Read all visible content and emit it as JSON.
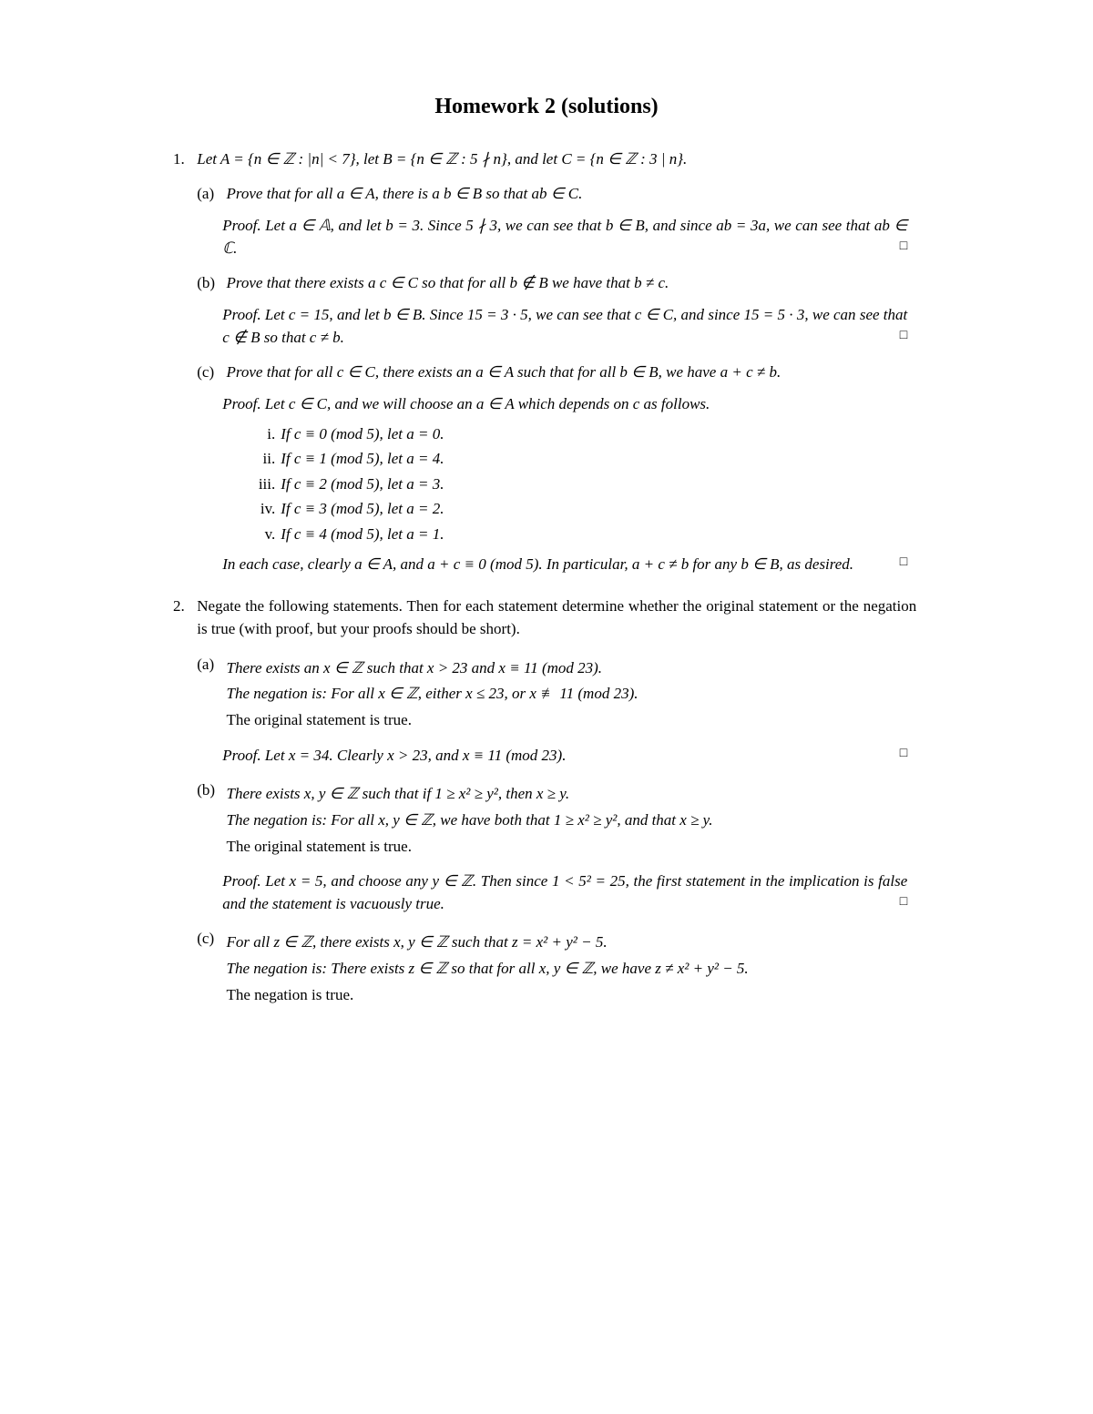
{
  "title": "Homework 2 (solutions)",
  "p1_intro": "Let A = {n ∈ ℤ : |n| < 7}, let B = {n ∈ ℤ : 5 ∤ n}, and let C = {n ∈ ℤ : 3 | n}.",
  "p1a_q": "Prove that for all a ∈ A, there is a b ∈ B so that ab ∈ C.",
  "p1a_proof": "Let a ∈ 𝔸, and let b = 3. Since 5 ∤ 3, we can see that b ∈ B, and since ab = 3a, we can see that ab ∈ ℂ.",
  "p1b_q": "Prove that there exists a c ∈ C so that for all b ∉ B we have that b ≠ c.",
  "p1b_proof": "Let c = 15, and let b ∈ B. Since 15 = 3 · 5, we can see that c ∈ C, and since 15 = 5 · 3, we can see that c ∉ B so that c ≠ b.",
  "p1c_q": "Prove that for all c ∈ C, there exists an a ∈ A such that for all b ∈ B, we have a + c ≠ b.",
  "p1c_proof_intro": "Let c ∈ C, and we will choose an a ∈ A which depends on c as follows.",
  "p1c_cases": [
    {
      "label": "i.",
      "text": "If c ≡ 0 (mod 5), let a = 0."
    },
    {
      "label": "ii.",
      "text": "If c ≡ 1 (mod 5), let a = 4."
    },
    {
      "label": "iii.",
      "text": "If c ≡ 2 (mod 5), let a = 3."
    },
    {
      "label": "iv.",
      "text": "If c ≡ 3 (mod 5), let a = 2."
    },
    {
      "label": "v.",
      "text": "If c ≡ 4 (mod 5), let a = 1."
    }
  ],
  "p1c_proof_end": "In each case, clearly a ∈ A, and a + c ≡ 0 (mod 5). In particular, a + c ≠ b for any b ∈ B, as desired.",
  "p2_intro": "Negate the following statements. Then for each statement determine whether the original statement or the negation is true (with proof, but your proofs should be short).",
  "p2a_stmt": "There exists an x ∈ ℤ such that x > 23 and x ≡ 11 (mod 23).",
  "p2a_neg": "The negation is: For all x ∈ ℤ, either x ≤ 23, or x ≢ 11 (mod 23).",
  "p2a_which": "The original statement is true.",
  "p2a_proof": "Let x = 34. Clearly x > 23, and x ≡ 11 (mod 23).",
  "p2b_stmt": "There exists x, y ∈ ℤ such that if 1 ≥ x² ≥ y², then x ≥ y.",
  "p2b_neg": "The negation is: For all x, y ∈ ℤ, we have both that 1 ≥ x² ≥ y², and that x ≥ y.",
  "p2b_which": "The original statement is true.",
  "p2b_proof": "Let x = 5, and choose any y ∈ ℤ. Then since 1 < 5² = 25, the first statement in the implication is false and the statement is vacuously true.",
  "p2c_stmt": "For all z ∈ ℤ, there exists x, y ∈ ℤ such that z = x² + y² − 5.",
  "p2c_neg": "The negation is: There exists z ∈ ℤ so that for all x, y ∈ ℤ, we have z ≠ x² + y² − 5.",
  "p2c_which": "The negation is true.",
  "labels": {
    "proof": "Proof.",
    "qed": "□",
    "n1": "1.",
    "n2": "2.",
    "a": "(a)",
    "b": "(b)",
    "c": "(c)"
  }
}
